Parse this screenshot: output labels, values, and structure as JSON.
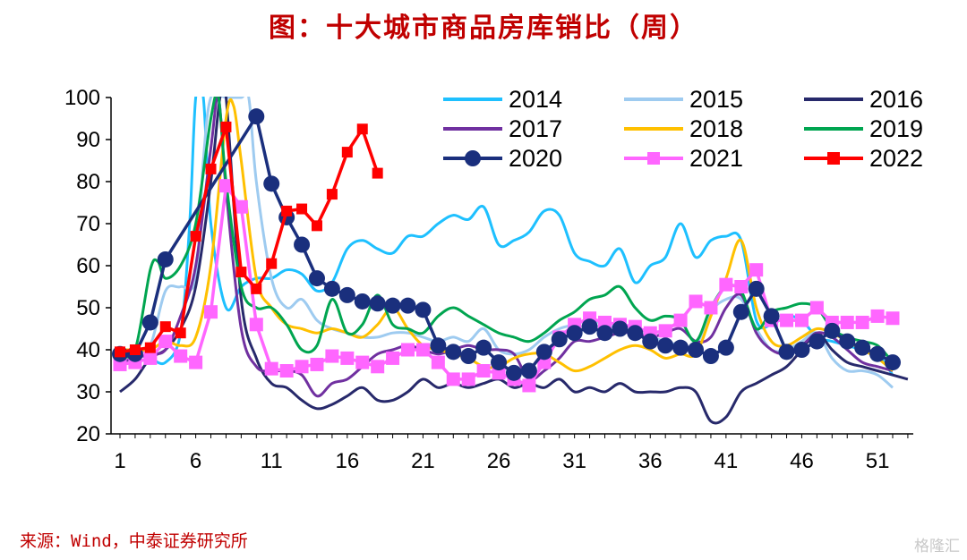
{
  "title": "图：十大城市商品房库销比（周）",
  "source": "来源：Wind，中泰证券研究所",
  "watermark": "格隆汇",
  "chart_data": {
    "type": "line",
    "ylim": [
      20,
      100
    ],
    "yticks": [
      20,
      30,
      40,
      50,
      60,
      70,
      80,
      90,
      100
    ],
    "xlim": [
      1,
      53
    ],
    "xticks": [
      1,
      6,
      11,
      16,
      21,
      26,
      31,
      36,
      41,
      46,
      51
    ],
    "series": [
      {
        "name": "2014",
        "color": "#1ec0ff",
        "marker": "none",
        "x": [
          1,
          2,
          3,
          4,
          5,
          5.6,
          6,
          6.5,
          7,
          8,
          9,
          10,
          11,
          12,
          13,
          14,
          15,
          16,
          17,
          18,
          19,
          20,
          21,
          22,
          23,
          24,
          25,
          26,
          27,
          28,
          29,
          30,
          31,
          32,
          33,
          34,
          35,
          36,
          37,
          38,
          39,
          40,
          41,
          42,
          43,
          44,
          45,
          46,
          47,
          48,
          49,
          50,
          51,
          52
        ],
        "y": [
          40,
          39,
          38,
          37,
          44,
          70,
          100,
          100,
          70,
          50,
          55,
          57,
          57,
          59,
          58,
          54,
          56,
          64,
          66,
          64,
          63,
          67,
          67,
          70,
          72,
          71,
          74,
          65,
          66,
          68,
          73,
          72,
          63,
          61,
          60,
          64,
          56,
          60,
          62,
          70,
          62,
          66,
          67,
          66,
          47,
          46,
          48,
          47,
          43,
          42,
          41,
          40,
          39,
          34
        ]
      },
      {
        "name": "2015",
        "color": "#9ecbf0",
        "marker": "none",
        "x": [
          1,
          2,
          3,
          4,
          5,
          6,
          6.5,
          7,
          8,
          9,
          9.5,
          10,
          11,
          12,
          13,
          14,
          15,
          16,
          17,
          18,
          19,
          20,
          21,
          22,
          23,
          24,
          25,
          26,
          27,
          28,
          29,
          30,
          31,
          32,
          33,
          34,
          35,
          36,
          37,
          38,
          39,
          40,
          41,
          42,
          43,
          44,
          45,
          46,
          47,
          48,
          49,
          50,
          51,
          52
        ],
        "y": [
          40,
          40,
          41,
          54,
          55,
          57,
          85,
          100,
          100,
          100,
          100,
          80,
          57,
          50,
          52,
          47,
          45,
          44,
          43,
          43,
          44,
          44,
          43,
          42,
          43,
          42,
          45,
          40,
          39,
          40,
          43,
          45,
          46,
          47,
          46,
          45,
          44,
          43,
          42,
          41,
          41,
          49,
          52,
          52,
          45,
          40,
          40,
          42,
          44,
          38,
          35,
          35,
          34,
          31
        ]
      },
      {
        "name": "2016",
        "color": "#27296b",
        "marker": "none",
        "x": [
          1,
          2,
          3,
          4,
          5,
          6,
          7,
          7.6,
          8,
          9,
          10,
          11,
          12,
          13,
          14,
          15,
          16,
          17,
          18,
          19,
          20,
          21,
          22,
          23,
          24,
          25,
          26,
          27,
          28,
          29,
          30,
          31,
          32,
          33,
          34,
          35,
          36,
          37,
          38,
          39,
          40,
          41,
          42,
          43,
          44,
          45,
          46,
          47,
          48,
          49,
          50,
          51,
          52,
          53
        ],
        "y": [
          30,
          33,
          38,
          40,
          45,
          55,
          80,
          100,
          100,
          52,
          38,
          32,
          31,
          28,
          26,
          27,
          29,
          31,
          28,
          28,
          30,
          33,
          31,
          32,
          31,
          32,
          33,
          31,
          32,
          31,
          33,
          30,
          31,
          30,
          32,
          30,
          30,
          30,
          31,
          30,
          23,
          24,
          30,
          32,
          34,
          36,
          40,
          44,
          40,
          37,
          36,
          35,
          34,
          33
        ]
      },
      {
        "name": "2017",
        "color": "#7030a0",
        "marker": "none",
        "x": [
          1,
          2,
          3,
          4,
          5,
          6,
          7,
          7.5,
          8,
          9,
          10,
          11,
          12,
          13,
          14,
          15,
          16,
          17,
          18,
          19,
          20,
          21,
          22,
          23,
          24,
          25,
          26,
          27,
          28,
          29,
          30,
          31,
          32,
          33,
          34,
          35,
          36,
          37,
          38,
          39,
          40,
          41,
          42,
          43,
          44,
          45,
          46,
          47,
          48,
          49,
          50,
          51,
          52
        ],
        "y": [
          37,
          38,
          39,
          40,
          48,
          60,
          88,
          100,
          78,
          45,
          36,
          35,
          35,
          34,
          29,
          32,
          33,
          36,
          39,
          40,
          41,
          40,
          39,
          40,
          41,
          40,
          40,
          39,
          33,
          35,
          38,
          42,
          42,
          43,
          44,
          44,
          43,
          44,
          45,
          42,
          43,
          50,
          53,
          44,
          40,
          39,
          41,
          44,
          43,
          40,
          37,
          36,
          35
        ]
      },
      {
        "name": "2018",
        "color": "#ffc000",
        "marker": "none",
        "x": [
          1,
          2,
          3,
          4,
          5,
          6,
          7,
          8,
          8.5,
          9,
          10,
          11,
          12,
          13,
          14,
          15,
          16,
          17,
          18,
          19,
          20,
          21,
          22,
          23,
          24,
          25,
          26,
          27,
          28,
          29,
          30,
          31,
          32,
          33,
          34,
          35,
          36,
          37,
          38,
          39,
          40,
          41,
          42,
          43,
          44,
          45,
          46,
          47,
          48,
          49,
          50,
          51,
          52
        ],
        "y": [
          40,
          40,
          40,
          42,
          41,
          43,
          60,
          95,
          98,
          85,
          57,
          50,
          46,
          45,
          44,
          45,
          44,
          43,
          46,
          50,
          45,
          41,
          40,
          39,
          38,
          36,
          36,
          38,
          39,
          39,
          37,
          35,
          36,
          38,
          40,
          41,
          40,
          38,
          39,
          39,
          48,
          57,
          66,
          50,
          42,
          41,
          43,
          45,
          44,
          42,
          40,
          38,
          35
        ]
      },
      {
        "name": "2019",
        "color": "#00a550",
        "marker": "none",
        "x": [
          1,
          2,
          3,
          3.5,
          4,
          5,
          6,
          7,
          7.5,
          8,
          9,
          10,
          11,
          12,
          13,
          14,
          15,
          16,
          17,
          18,
          19,
          20,
          21,
          22,
          23,
          24,
          25,
          26,
          27,
          28,
          29,
          30,
          31,
          32,
          33,
          34,
          35,
          36,
          37,
          38,
          39,
          40,
          41,
          42,
          43,
          44,
          45,
          46,
          47,
          48,
          49,
          50,
          51,
          52
        ],
        "y": [
          39,
          40,
          59,
          61,
          57,
          60,
          70,
          95,
          100,
          80,
          55,
          50,
          50,
          46,
          40,
          41,
          52,
          44,
          46,
          53,
          46,
          45,
          44,
          48,
          50,
          48,
          46,
          44,
          43,
          42,
          44,
          47,
          49,
          52,
          53,
          55,
          50,
          47,
          48,
          47,
          42,
          50,
          55,
          54,
          45,
          49,
          50,
          51,
          50,
          45,
          43,
          42,
          41,
          37
        ]
      },
      {
        "name": "2020",
        "color": "#1a2f7d",
        "marker": "circle",
        "x": [
          1,
          2,
          3,
          4,
          10,
          11,
          12,
          13,
          14,
          15,
          16,
          17,
          18,
          19,
          20,
          21,
          22,
          23,
          24,
          25,
          26,
          27,
          28,
          29,
          30,
          31,
          32,
          33,
          34,
          35,
          36,
          37,
          38,
          39,
          40,
          41,
          42,
          43,
          44,
          45,
          46,
          47,
          48,
          49,
          50,
          51,
          52
        ],
        "y": [
          39,
          39,
          46.5,
          61.5,
          95.5,
          79.5,
          71.5,
          65,
          57,
          54.5,
          53,
          51.5,
          51,
          50.5,
          50.5,
          49.5,
          41,
          39.5,
          38.5,
          40.5,
          37,
          34.5,
          35,
          39.5,
          42.5,
          44,
          45.5,
          44,
          45,
          44,
          42,
          41,
          40.5,
          40,
          38.5,
          40.5,
          49,
          54.5,
          48,
          39.5,
          40,
          42,
          44.5,
          42,
          40.5,
          39,
          37
        ]
      },
      {
        "name": "2021",
        "color": "#ff66ff",
        "marker": "square",
        "x": [
          1,
          2,
          3,
          4,
          5,
          6,
          7,
          8,
          9,
          10,
          11,
          12,
          13,
          14,
          15,
          16,
          17,
          18,
          19,
          20,
          21,
          22,
          23,
          24,
          25,
          26,
          27,
          28,
          29,
          30,
          31,
          32,
          33,
          34,
          35,
          36,
          37,
          38,
          39,
          40,
          41,
          42,
          43,
          44,
          45,
          46,
          47,
          48,
          49,
          50,
          51,
          52
        ],
        "y": [
          36.5,
          37,
          38,
          42,
          38.5,
          37,
          49,
          79,
          74,
          46,
          35.5,
          35,
          36,
          36.5,
          38.5,
          38,
          37,
          36,
          38,
          40,
          40,
          37,
          33,
          33,
          35,
          34.5,
          33,
          31.5,
          37,
          43,
          46,
          47.5,
          46.5,
          46,
          45.5,
          44,
          44.5,
          47,
          51.5,
          50,
          55.5,
          55,
          59,
          47,
          47,
          47,
          50,
          46.5,
          46.5,
          46.5,
          48,
          47.5
        ]
      },
      {
        "name": "2022",
        "color": "#ff0000",
        "marker": "square",
        "x": [
          1,
          2,
          3,
          4,
          5,
          6,
          7,
          8,
          9,
          10,
          11,
          12,
          13,
          14,
          15,
          16,
          17,
          18
        ],
        "y": [
          39.5,
          40,
          40.5,
          45.5,
          44,
          67,
          83,
          93,
          58.5,
          54.5,
          60.5,
          73,
          73.5,
          69.5,
          77,
          87,
          92.5,
          82
        ]
      }
    ]
  }
}
